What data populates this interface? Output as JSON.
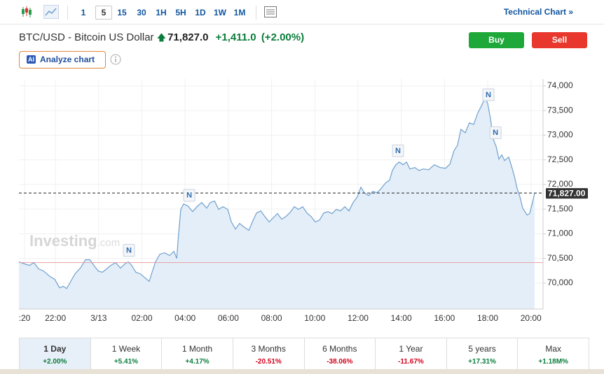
{
  "toolbar": {
    "intervals": [
      "1",
      "5",
      "15",
      "30",
      "1H",
      "5H",
      "1D",
      "1W",
      "1M"
    ],
    "selected": "5",
    "technical_chart": "Technical Chart »"
  },
  "instrument": {
    "name": "BTC/USD - Bitcoin US Dollar",
    "price": "71,827.0",
    "change": "+1,411.0",
    "change_pct": "(+2.00%)"
  },
  "buttons": {
    "buy": "Buy",
    "sell": "Sell",
    "analyze": "Analyze chart",
    "ai_badge": "AI"
  },
  "chart_data": {
    "type": "area",
    "color": "#6fa0cf",
    "fill": "#e4eef8",
    "watermark": "Investing",
    "watermark_suffix": ".com",
    "x": [
      20.31,
      20.57,
      20.8,
      21.0,
      21.22,
      21.45,
      21.71,
      21.97,
      22.19,
      22.36,
      22.52,
      22.71,
      22.91,
      23.17,
      23.39,
      23.59,
      23.78,
      23.98,
      24.17,
      24.37,
      24.56,
      24.79,
      25.01,
      25.21,
      25.37,
      25.53,
      25.72,
      25.92,
      26.15,
      26.34,
      26.47,
      26.63,
      26.83,
      27.06,
      27.28,
      27.48,
      27.61,
      27.7,
      27.8,
      27.93,
      28.13,
      28.35,
      28.58,
      28.77,
      29.0,
      29.16,
      29.36,
      29.55,
      29.75,
      29.97,
      30.14,
      30.33,
      30.52,
      30.72,
      30.95,
      31.11,
      31.3,
      31.5,
      31.69,
      31.89,
      32.08,
      32.27,
      32.47,
      32.66,
      32.86,
      33.05,
      33.25,
      33.44,
      33.64,
      33.83,
      34.02,
      34.22,
      34.41,
      34.61,
      34.8,
      35.0,
      35.19,
      35.39,
      35.58,
      35.77,
      35.97,
      36.13,
      36.29,
      36.49,
      36.68,
      36.88,
      37.07,
      37.27,
      37.46,
      37.59,
      37.75,
      37.91,
      38.08,
      38.24,
      38.4,
      38.63,
      38.82,
      39.02,
      39.27,
      39.53,
      39.79,
      40.05,
      40.25,
      40.44,
      40.6,
      40.76,
      40.96,
      41.15,
      41.35,
      41.54,
      41.74,
      41.87,
      42.0,
      42.13,
      42.26,
      42.39,
      42.52,
      42.65,
      42.78,
      42.97,
      43.1,
      43.23,
      43.36,
      43.49,
      43.62,
      43.82,
      43.94,
      44.07,
      44.17
    ],
    "values": [
      70430,
      70390,
      70360,
      70415,
      70290,
      70245,
      70145,
      70075,
      69905,
      69935,
      69890,
      70035,
      70190,
      70315,
      70475,
      70475,
      70360,
      70245,
      70220,
      70290,
      70360,
      70415,
      70305,
      70390,
      70430,
      70360,
      70220,
      70190,
      70105,
      70035,
      70220,
      70430,
      70585,
      70615,
      70560,
      70645,
      70500,
      71000,
      71495,
      71605,
      71565,
      71450,
      71565,
      71635,
      71520,
      71635,
      71665,
      71495,
      71550,
      71495,
      71240,
      71095,
      71210,
      71140,
      71070,
      71240,
      71420,
      71465,
      71350,
      71240,
      71325,
      71410,
      71295,
      71350,
      71435,
      71550,
      71495,
      71550,
      71420,
      71350,
      71240,
      71280,
      71420,
      71450,
      71410,
      71495,
      71465,
      71550,
      71465,
      71635,
      71750,
      71945,
      71835,
      71775,
      71860,
      71835,
      71920,
      72030,
      72090,
      72285,
      72400,
      72455,
      72400,
      72455,
      72315,
      72345,
      72285,
      72315,
      72300,
      72400,
      72345,
      72330,
      72415,
      72685,
      72795,
      73120,
      73050,
      73250,
      73220,
      73450,
      73620,
      73760,
      73645,
      73335,
      72910,
      72770,
      72515,
      72600,
      72485,
      72555,
      72370,
      72175,
      71920,
      71750,
      71520,
      71380,
      71410,
      71635,
      71827
    ],
    "xlim": [
      20.31,
      44.56
    ],
    "ylim": [
      69475,
      74140
    ],
    "xticks": [
      {
        "value": 20.57,
        "label": ":20"
      },
      {
        "value": 22,
        "label": "22:00"
      },
      {
        "value": 24,
        "label": "3/13"
      },
      {
        "value": 26,
        "label": "02:00"
      },
      {
        "value": 28,
        "label": "04:00"
      },
      {
        "value": 30,
        "label": "06:00"
      },
      {
        "value": 32,
        "label": "08:00"
      },
      {
        "value": 34,
        "label": "10:00"
      },
      {
        "value": 36,
        "label": "12:00"
      },
      {
        "value": 38,
        "label": "14:00"
      },
      {
        "value": 40,
        "label": "16:00"
      },
      {
        "value": 42,
        "label": "18:00"
      },
      {
        "value": 44,
        "label": "20:00"
      }
    ],
    "yticks": [
      {
        "value": 70000,
        "label": "70,000"
      },
      {
        "value": 70500,
        "label": "70,500"
      },
      {
        "value": 71000,
        "label": "71,000"
      },
      {
        "value": 71500,
        "label": "71,500"
      },
      {
        "value": 72000,
        "label": "72,000"
      },
      {
        "value": 72500,
        "label": "72,500"
      },
      {
        "value": 73000,
        "label": "73,000"
      },
      {
        "value": 73500,
        "label": "73,500"
      },
      {
        "value": 74000,
        "label": "74,000"
      }
    ],
    "grid": true,
    "reference_line": {
      "value": 70416,
      "color": "#e8a0a0"
    },
    "last_price": {
      "value": 71827,
      "label": "71,827.00"
    },
    "annotations": [
      {
        "x": 25.4,
        "label": "N"
      },
      {
        "x": 28.19,
        "label": "N"
      },
      {
        "x": 37.85,
        "label": "N"
      },
      {
        "x": 42.03,
        "label": "N"
      },
      {
        "x": 42.36,
        "label": "N"
      }
    ]
  },
  "periods": {
    "selected": "1 Day",
    "items": [
      {
        "label": "1 Day",
        "change": "+2.00%"
      },
      {
        "label": "1 Week",
        "change": "+5.41%"
      },
      {
        "label": "1 Month",
        "change": "+4.17%"
      },
      {
        "label": "3 Months",
        "change": "-20.51%"
      },
      {
        "label": "6 Months",
        "change": "-38.06%"
      },
      {
        "label": "1 Year",
        "change": "-11.67%"
      },
      {
        "label": "5 years",
        "change": "+17.31%"
      },
      {
        "label": "Max",
        "change": "+1.18M%"
      }
    ]
  }
}
